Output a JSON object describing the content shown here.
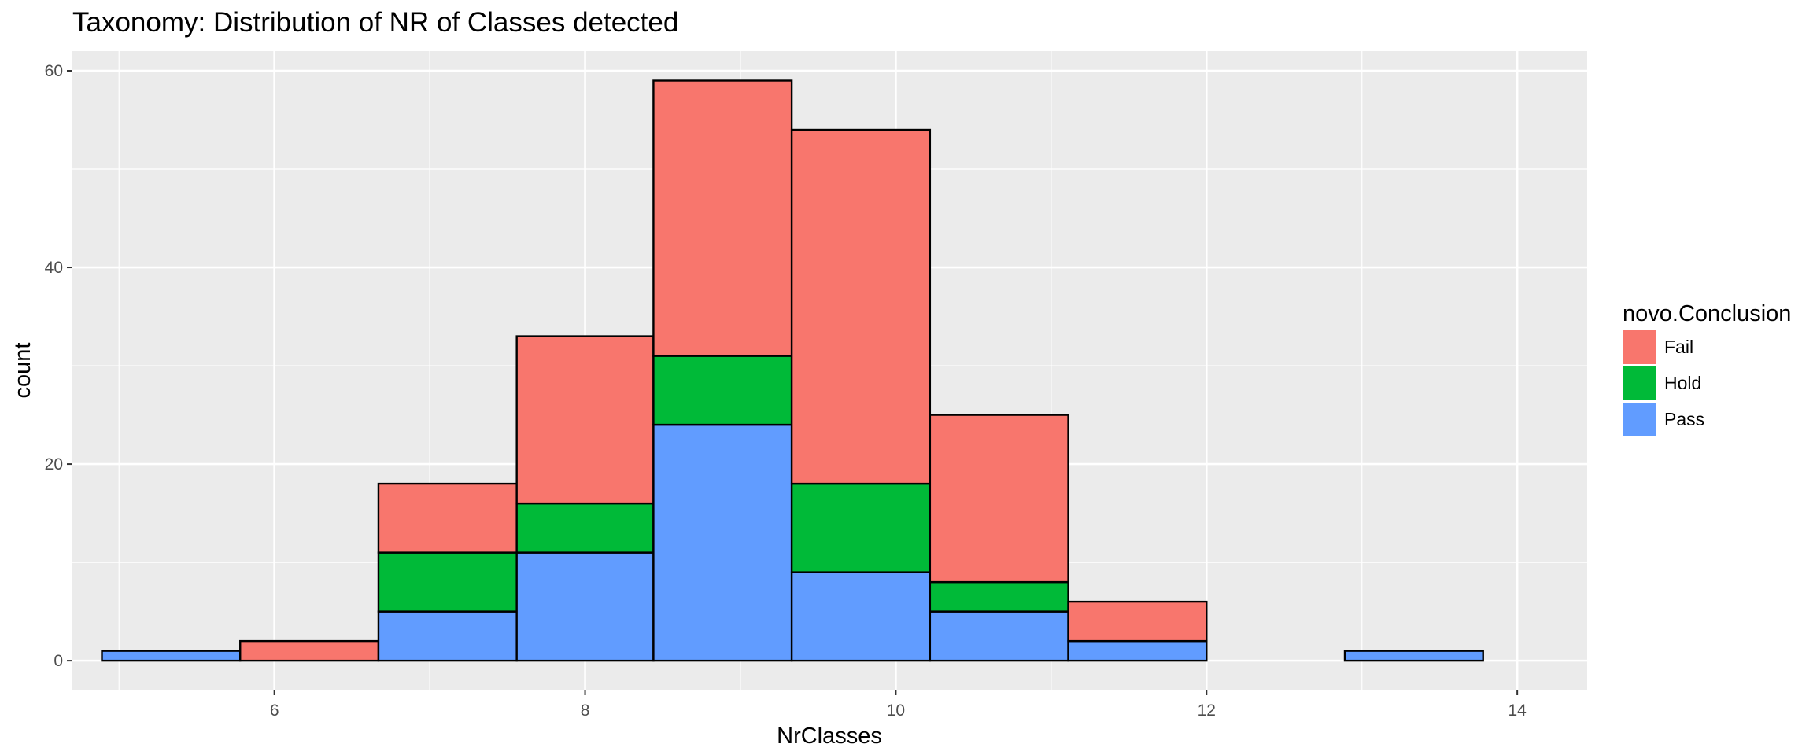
{
  "chart_data": {
    "type": "bar",
    "subtype": "stacked-histogram",
    "title": "Taxonomy: Distribution of NR of Classes detected",
    "xlabel": "NrClasses",
    "ylabel": "count",
    "xlim": [
      4.7,
      14.45
    ],
    "ylim": [
      -2.95,
      62.0
    ],
    "x_ticks": [
      6,
      8,
      10,
      12,
      14
    ],
    "x_tick_labels": [
      "6",
      "8",
      "10",
      "12",
      "14"
    ],
    "y_ticks": [
      0,
      20,
      40,
      60
    ],
    "y_tick_labels": [
      "0",
      "20",
      "40",
      "60"
    ],
    "grid": true,
    "stacking_order": [
      "Pass",
      "Hold",
      "Fail"
    ],
    "bins": [
      {
        "x0": 4.89,
        "x1": 5.78
      },
      {
        "x0": 5.78,
        "x1": 6.67
      },
      {
        "x0": 6.67,
        "x1": 7.56
      },
      {
        "x0": 7.56,
        "x1": 8.44
      },
      {
        "x0": 8.44,
        "x1": 9.33
      },
      {
        "x0": 9.33,
        "x1": 10.22
      },
      {
        "x0": 10.22,
        "x1": 11.11
      },
      {
        "x0": 11.11,
        "x1": 12.0
      },
      {
        "x0": 12.0,
        "x1": 12.89
      },
      {
        "x0": 12.89,
        "x1": 13.78
      }
    ],
    "series": [
      {
        "name": "Fail",
        "color": "#F8766D",
        "values": [
          0,
          2,
          7,
          17,
          28,
          36,
          17,
          4,
          0,
          0
        ]
      },
      {
        "name": "Hold",
        "color": "#00BA38",
        "values": [
          0,
          0,
          6,
          5,
          7,
          9,
          3,
          0,
          0,
          0
        ]
      },
      {
        "name": "Pass",
        "color": "#619CFF",
        "values": [
          1,
          0,
          5,
          11,
          24,
          9,
          5,
          2,
          0,
          1
        ]
      }
    ],
    "legend": {
      "title": "novo.Conclusion",
      "position": "right",
      "entries": [
        "Fail",
        "Hold",
        "Pass"
      ]
    },
    "colors": {
      "panel_background": "#EBEBEB",
      "grid_line": "#FFFFFF",
      "bar_outline": "#000000"
    }
  }
}
